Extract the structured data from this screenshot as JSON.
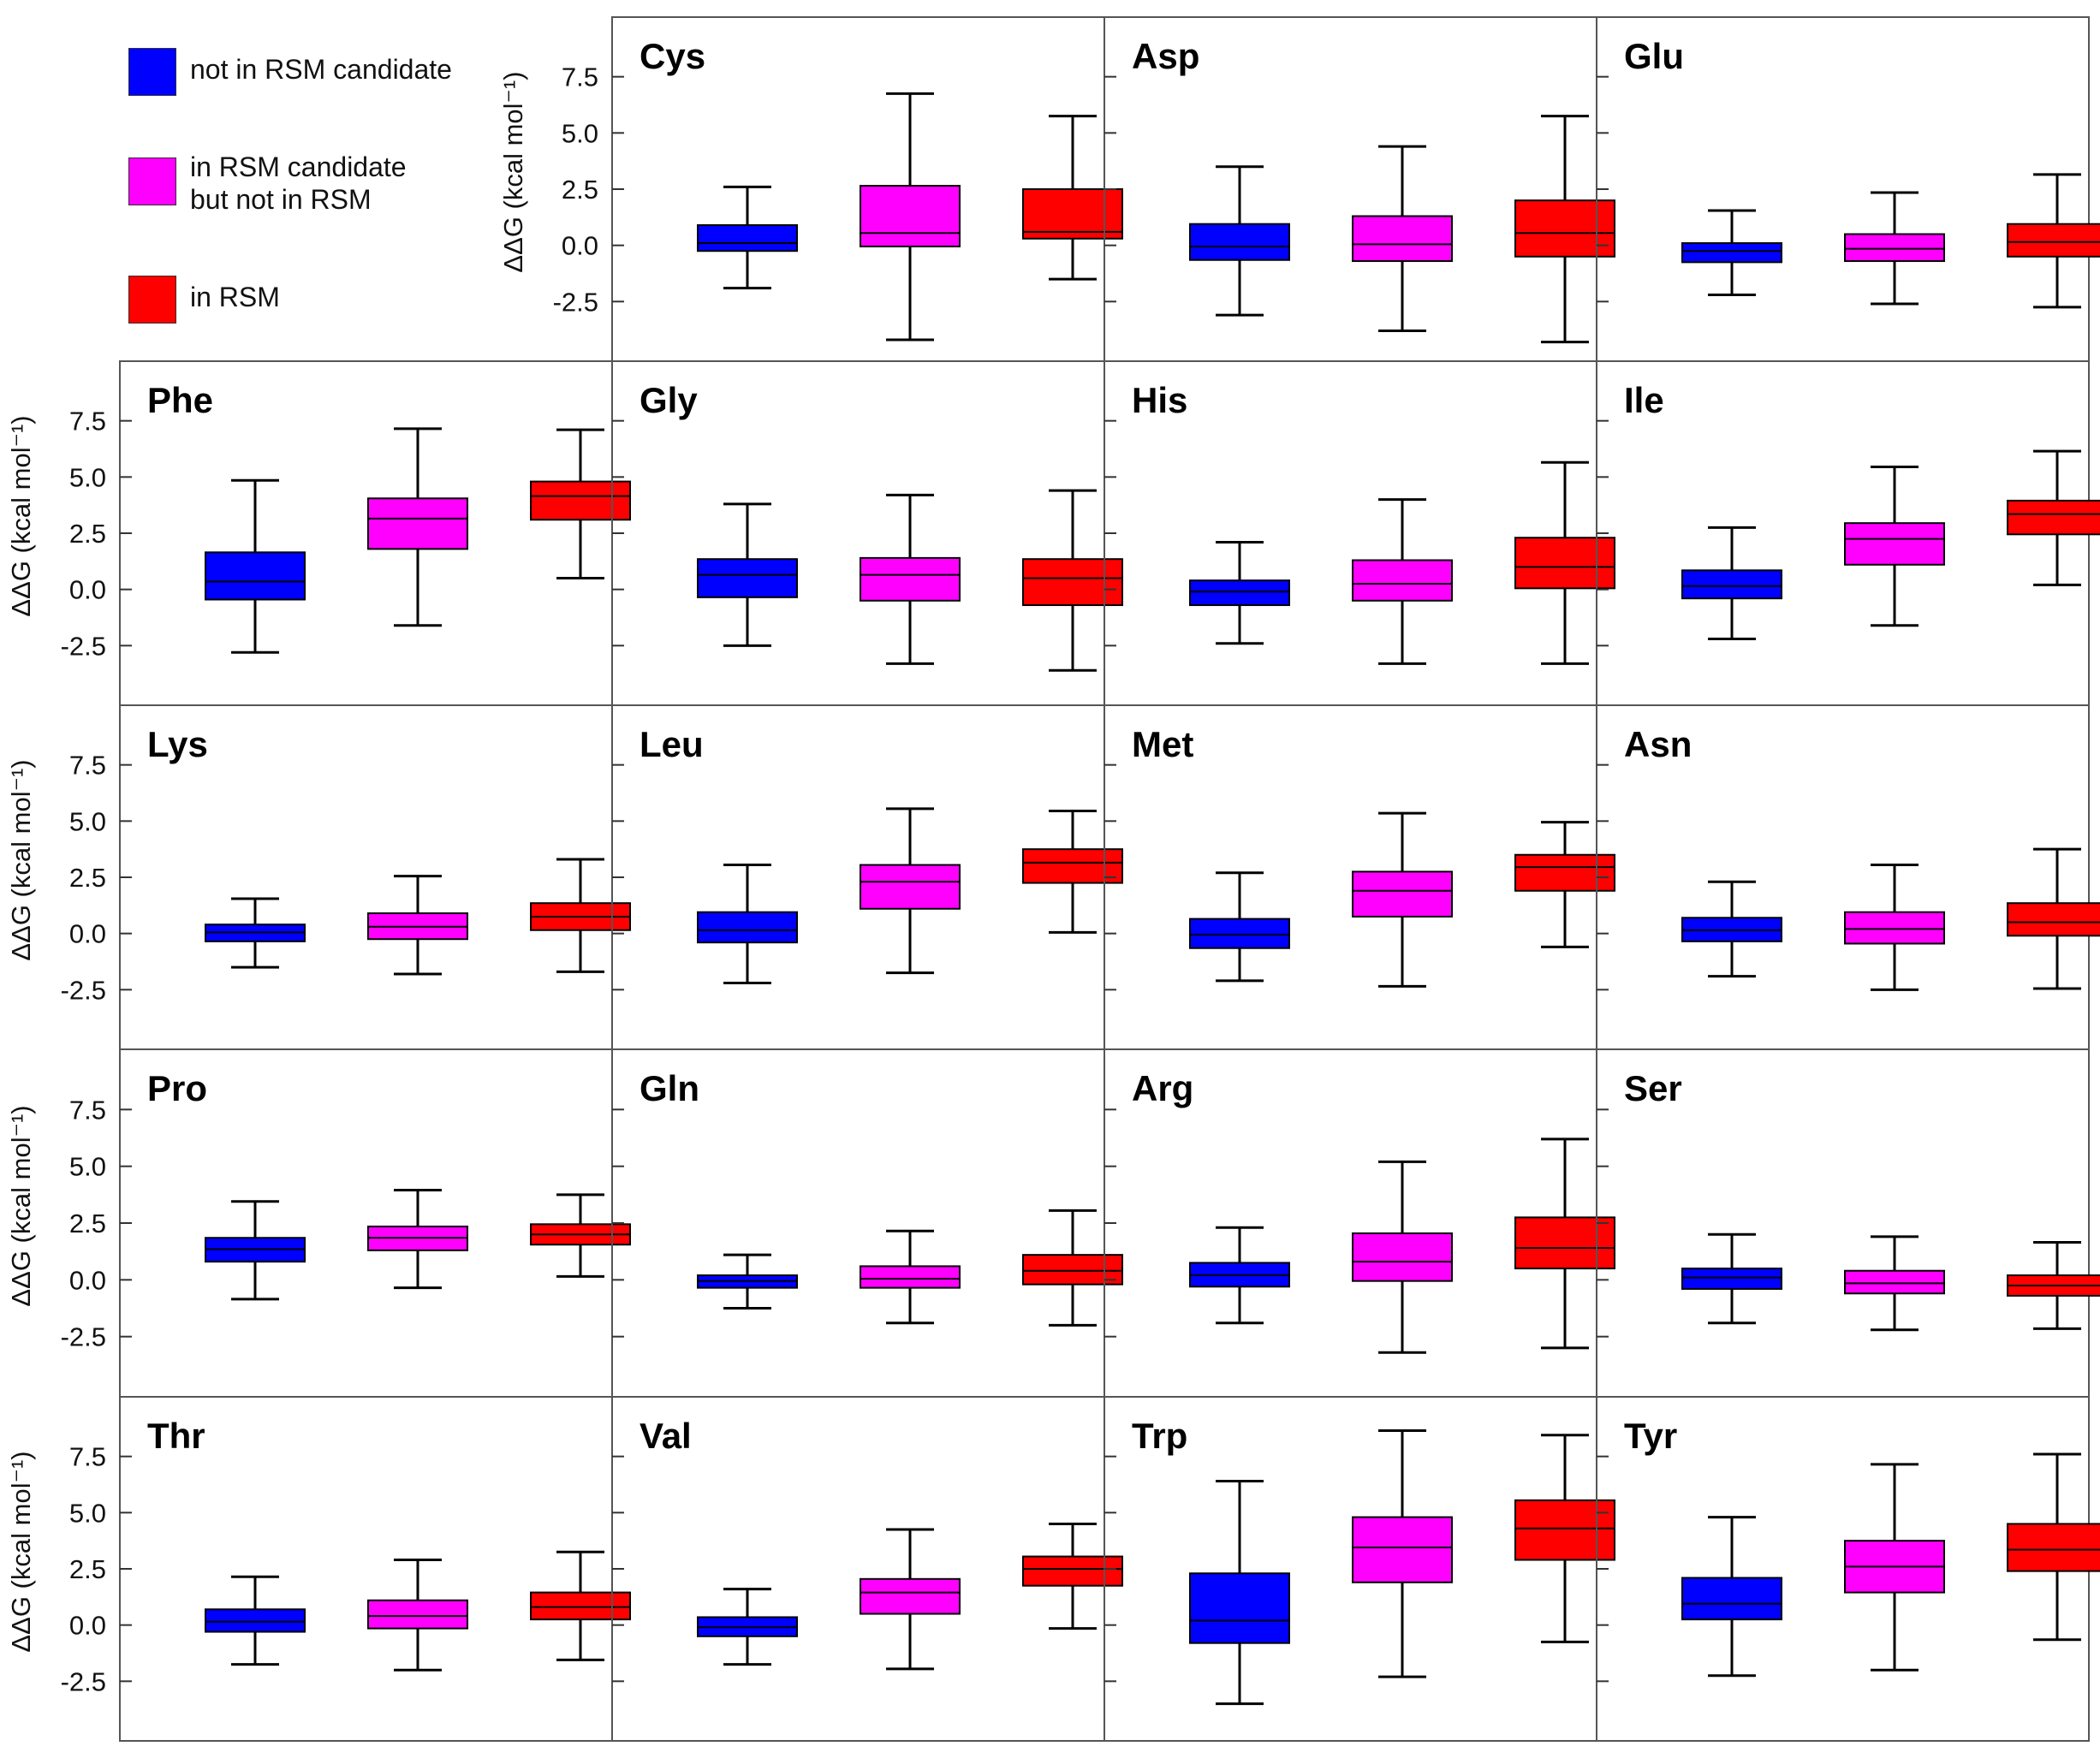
{
  "chart_data": {
    "type": "box",
    "ylabel": "ΔΔG (kcal mol⁻¹)",
    "yticks": [
      -2.5,
      0.0,
      2.5,
      5.0,
      7.5
    ],
    "ylim": [
      -5.0,
      10.0
    ],
    "series": [
      {
        "name": "not in RSM candidate",
        "color": "#0000ff"
      },
      {
        "name": "in RSM candidate but not in RSM",
        "color": "#ff00ff"
      },
      {
        "name": "in RSM",
        "color": "#ff0000"
      }
    ],
    "legend": {
      "items": [
        "not in RSM candidate",
        "in RSM candidate\nbut not in RSM",
        "in RSM"
      ],
      "colors": [
        "#0000ff",
        "#ff00ff",
        "#ff0000"
      ]
    },
    "panels": [
      {
        "title": "Cys",
        "boxes": [
          {
            "whislo": -1.9,
            "q1": -0.25,
            "med": 0.1,
            "q3": 0.9,
            "whishi": 2.6
          },
          {
            "whislo": -4.2,
            "q1": -0.05,
            "med": 0.55,
            "q3": 2.65,
            "whishi": 6.75
          },
          {
            "whislo": -1.5,
            "q1": 0.3,
            "med": 0.6,
            "q3": 2.5,
            "whishi": 5.75
          }
        ]
      },
      {
        "title": "Asp",
        "boxes": [
          {
            "whislo": -3.1,
            "q1": -0.65,
            "med": -0.05,
            "q3": 0.95,
            "whishi": 3.5
          },
          {
            "whislo": -3.8,
            "q1": -0.7,
            "med": 0.05,
            "q3": 1.3,
            "whishi": 4.4
          },
          {
            "whislo": -4.3,
            "q1": -0.5,
            "med": 0.55,
            "q3": 2.0,
            "whishi": 5.75
          }
        ]
      },
      {
        "title": "Glu",
        "boxes": [
          {
            "whislo": -2.2,
            "q1": -0.75,
            "med": -0.25,
            "q3": 0.1,
            "whishi": 1.55
          },
          {
            "whislo": -2.6,
            "q1": -0.7,
            "med": -0.15,
            "q3": 0.5,
            "whishi": 2.35
          },
          {
            "whislo": -2.75,
            "q1": -0.5,
            "med": 0.15,
            "q3": 0.95,
            "whishi": 3.15
          }
        ]
      },
      {
        "title": "Phe",
        "boxes": [
          {
            "whislo": -2.8,
            "q1": -0.45,
            "med": 0.35,
            "q3": 1.65,
            "whishi": 4.85
          },
          {
            "whislo": -1.6,
            "q1": 1.8,
            "med": 3.15,
            "q3": 4.05,
            "whishi": 7.15
          },
          {
            "whislo": 0.5,
            "q1": 3.1,
            "med": 4.15,
            "q3": 4.8,
            "whishi": 7.1
          }
        ]
      },
      {
        "title": "Gly",
        "boxes": [
          {
            "whislo": -2.5,
            "q1": -0.35,
            "med": 0.65,
            "q3": 1.35,
            "whishi": 3.8
          },
          {
            "whislo": -3.3,
            "q1": -0.5,
            "med": 0.65,
            "q3": 1.4,
            "whishi": 4.2
          },
          {
            "whislo": -3.6,
            "q1": -0.7,
            "med": 0.5,
            "q3": 1.35,
            "whishi": 4.4
          }
        ]
      },
      {
        "title": "His",
        "boxes": [
          {
            "whislo": -2.4,
            "q1": -0.7,
            "med": -0.1,
            "q3": 0.4,
            "whishi": 2.1
          },
          {
            "whislo": -3.3,
            "q1": -0.5,
            "med": 0.25,
            "q3": 1.3,
            "whishi": 4.0
          },
          {
            "whislo": -3.3,
            "q1": 0.05,
            "med": 1.0,
            "q3": 2.3,
            "whishi": 5.65
          }
        ]
      },
      {
        "title": "Ile",
        "boxes": [
          {
            "whislo": -2.2,
            "q1": -0.4,
            "med": 0.15,
            "q3": 0.85,
            "whishi": 2.75
          },
          {
            "whislo": -1.6,
            "q1": 1.1,
            "med": 2.25,
            "q3": 2.95,
            "whishi": 5.45
          },
          {
            "whislo": 0.2,
            "q1": 2.45,
            "med": 3.35,
            "q3": 3.95,
            "whishi": 6.15
          }
        ]
      },
      {
        "title": "Lys",
        "boxes": [
          {
            "whislo": -1.5,
            "q1": -0.35,
            "med": 0.05,
            "q3": 0.4,
            "whishi": 1.55
          },
          {
            "whislo": -1.8,
            "q1": -0.25,
            "med": 0.3,
            "q3": 0.9,
            "whishi": 2.55
          },
          {
            "whislo": -1.7,
            "q1": 0.15,
            "med": 0.75,
            "q3": 1.35,
            "whishi": 3.3
          }
        ]
      },
      {
        "title": "Leu",
        "boxes": [
          {
            "whislo": -2.2,
            "q1": -0.4,
            "med": 0.15,
            "q3": 0.95,
            "whishi": 3.05
          },
          {
            "whislo": -1.75,
            "q1": 1.1,
            "med": 2.3,
            "q3": 3.05,
            "whishi": 5.55
          },
          {
            "whislo": 0.05,
            "q1": 2.25,
            "med": 3.15,
            "q3": 3.75,
            "whishi": 5.45
          }
        ]
      },
      {
        "title": "Met",
        "boxes": [
          {
            "whislo": -2.1,
            "q1": -0.65,
            "med": -0.05,
            "q3": 0.65,
            "whishi": 2.7
          },
          {
            "whislo": -2.35,
            "q1": 0.75,
            "med": 1.9,
            "q3": 2.75,
            "whishi": 5.35
          },
          {
            "whislo": -0.6,
            "q1": 1.9,
            "med": 2.95,
            "q3": 3.5,
            "whishi": 4.95
          }
        ]
      },
      {
        "title": "Asn",
        "boxes": [
          {
            "whislo": -1.9,
            "q1": -0.35,
            "med": 0.15,
            "q3": 0.7,
            "whishi": 2.3
          },
          {
            "whislo": -2.5,
            "q1": -0.45,
            "med": 0.2,
            "q3": 0.95,
            "whishi": 3.05
          },
          {
            "whislo": -2.45,
            "q1": -0.1,
            "med": 0.5,
            "q3": 1.35,
            "whishi": 3.75
          }
        ]
      },
      {
        "title": "Pro",
        "boxes": [
          {
            "whislo": -0.85,
            "q1": 0.8,
            "med": 1.35,
            "q3": 1.85,
            "whishi": 3.45
          },
          {
            "whislo": -0.35,
            "q1": 1.3,
            "med": 1.85,
            "q3": 2.35,
            "whishi": 3.95
          },
          {
            "whislo": 0.15,
            "q1": 1.55,
            "med": 2.0,
            "q3": 2.45,
            "whishi": 3.75
          }
        ]
      },
      {
        "title": "Gln",
        "boxes": [
          {
            "whislo": -1.25,
            "q1": -0.35,
            "med": -0.05,
            "q3": 0.2,
            "whishi": 1.1
          },
          {
            "whislo": -1.9,
            "q1": -0.35,
            "med": 0.05,
            "q3": 0.6,
            "whishi": 2.15
          },
          {
            "whislo": -2.0,
            "q1": -0.2,
            "med": 0.4,
            "q3": 1.1,
            "whishi": 3.05
          }
        ]
      },
      {
        "title": "Arg",
        "boxes": [
          {
            "whislo": -1.9,
            "q1": -0.3,
            "med": 0.2,
            "q3": 0.75,
            "whishi": 2.3
          },
          {
            "whislo": -3.2,
            "q1": -0.05,
            "med": 0.8,
            "q3": 2.05,
            "whishi": 5.2
          },
          {
            "whislo": -3.0,
            "q1": 0.5,
            "med": 1.4,
            "q3": 2.75,
            "whishi": 6.2
          }
        ]
      },
      {
        "title": "Ser",
        "boxes": [
          {
            "whislo": -1.9,
            "q1": -0.4,
            "med": 0.1,
            "q3": 0.5,
            "whishi": 2.0
          },
          {
            "whislo": -2.2,
            "q1": -0.6,
            "med": -0.15,
            "q3": 0.4,
            "whishi": 1.9
          },
          {
            "whislo": -2.15,
            "q1": -0.7,
            "med": -0.25,
            "q3": 0.2,
            "whishi": 1.65
          }
        ]
      },
      {
        "title": "Thr",
        "boxes": [
          {
            "whislo": -1.75,
            "q1": -0.3,
            "med": 0.15,
            "q3": 0.7,
            "whishi": 2.15
          },
          {
            "whislo": -2.0,
            "q1": -0.15,
            "med": 0.4,
            "q3": 1.1,
            "whishi": 2.9
          },
          {
            "whislo": -1.55,
            "q1": 0.25,
            "med": 0.8,
            "q3": 1.45,
            "whishi": 3.25
          }
        ]
      },
      {
        "title": "Val",
        "boxes": [
          {
            "whislo": -1.75,
            "q1": -0.5,
            "med": -0.1,
            "q3": 0.35,
            "whishi": 1.6
          },
          {
            "whislo": -1.95,
            "q1": 0.5,
            "med": 1.45,
            "q3": 2.05,
            "whishi": 4.25
          },
          {
            "whislo": -0.15,
            "q1": 1.75,
            "med": 2.5,
            "q3": 3.05,
            "whishi": 4.5
          }
        ]
      },
      {
        "title": "Trp",
        "boxes": [
          {
            "whislo": -3.5,
            "q1": -0.8,
            "med": 0.2,
            "q3": 2.3,
            "whishi": 6.4
          },
          {
            "whislo": -2.3,
            "q1": 1.9,
            "med": 3.45,
            "q3": 4.8,
            "whishi": 8.65
          },
          {
            "whislo": -0.75,
            "q1": 2.9,
            "med": 4.3,
            "q3": 5.55,
            "whishi": 8.45
          }
        ]
      },
      {
        "title": "Tyr",
        "boxes": [
          {
            "whislo": -2.25,
            "q1": 0.25,
            "med": 0.95,
            "q3": 2.1,
            "whishi": 4.8
          },
          {
            "whislo": -2.0,
            "q1": 1.45,
            "med": 2.6,
            "q3": 3.75,
            "whishi": 7.15
          },
          {
            "whislo": -0.65,
            "q1": 2.4,
            "med": 3.35,
            "q3": 4.5,
            "whishi": 7.6
          }
        ]
      }
    ]
  }
}
